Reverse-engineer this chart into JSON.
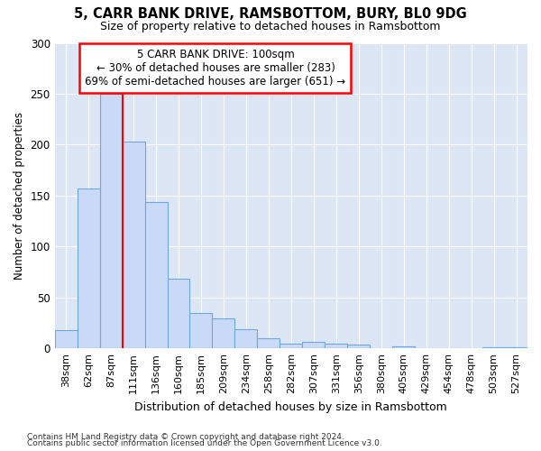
{
  "title1": "5, CARR BANK DRIVE, RAMSBOTTOM, BURY, BL0 9DG",
  "title2": "Size of property relative to detached houses in Ramsbottom",
  "xlabel": "Distribution of detached houses by size in Ramsbottom",
  "ylabel": "Number of detached properties",
  "bin_labels": [
    "38sqm",
    "62sqm",
    "87sqm",
    "111sqm",
    "136sqm",
    "160sqm",
    "185sqm",
    "209sqm",
    "234sqm",
    "258sqm",
    "282sqm",
    "307sqm",
    "331sqm",
    "356sqm",
    "380sqm",
    "405sqm",
    "429sqm",
    "454sqm",
    "478sqm",
    "503sqm",
    "527sqm"
  ],
  "bar_heights": [
    18,
    157,
    250,
    203,
    144,
    68,
    35,
    29,
    19,
    10,
    5,
    6,
    5,
    4,
    0,
    2,
    0,
    0,
    0,
    1,
    1
  ],
  "bar_color": "#c9daf8",
  "bar_edge_color": "#6fa8dc",
  "red_line_x": 2.5,
  "red_line_color": "red",
  "annotation_line1": "5 CARR BANK DRIVE: 100sqm",
  "annotation_line2": "← 30% of detached houses are smaller (283)",
  "annotation_line3": "69% of semi-detached houses are larger (651) →",
  "annotation_box_color": "white",
  "annotation_box_edge": "red",
  "ylim": [
    0,
    300
  ],
  "yticks": [
    0,
    50,
    100,
    150,
    200,
    250,
    300
  ],
  "footer1": "Contains HM Land Registry data © Crown copyright and database right 2024.",
  "footer2": "Contains public sector information licensed under the Open Government Licence v3.0.",
  "bg_color": "#ffffff",
  "plot_bg_color": "#dce6f5"
}
